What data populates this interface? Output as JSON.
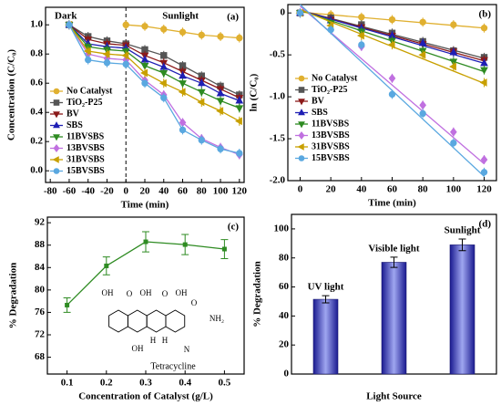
{
  "chart_data": [
    {
      "type": "line",
      "panel_label": "(a)",
      "x_label": "Time (min)",
      "y_label": "Concentration (C/C₀)",
      "annotations": [
        "Dark",
        "Sunlight"
      ],
      "divider": 0,
      "xlim": [
        -85,
        125
      ],
      "ylim": [
        -0.08,
        1.12
      ],
      "xticks": [
        -80,
        -60,
        -40,
        -20,
        0,
        20,
        40,
        60,
        80,
        100,
        120
      ],
      "yticks": [
        {
          "value": 0,
          "label": "0.0"
        },
        {
          "value": 0.2,
          "label": "0.2"
        },
        {
          "value": 0.4,
          "label": "0.4"
        },
        {
          "value": 0.6,
          "label": "0.6"
        },
        {
          "value": 0.8,
          "label": "0.8"
        },
        {
          "value": 1,
          "label": "1.0"
        }
      ],
      "x": [
        -60,
        -40,
        -20,
        0,
        20,
        40,
        60,
        80,
        100,
        120
      ],
      "series": [
        {
          "name": "No Catalyst",
          "color": "#e0b030",
          "marker": "circle",
          "values": [
            1.0,
            null,
            null,
            1.0,
            0.99,
            0.97,
            0.95,
            0.93,
            0.92,
            0.91
          ]
        },
        {
          "name": "TiO₂-P25",
          "color": "#555555",
          "marker": "square",
          "values": [
            1.0,
            0.92,
            0.89,
            0.87,
            0.83,
            0.79,
            0.72,
            0.65,
            0.58,
            0.52
          ]
        },
        {
          "name": "BV",
          "color": "#8b1a1a",
          "marker": "tri-down",
          "values": [
            1.0,
            0.9,
            0.87,
            0.86,
            0.79,
            0.74,
            0.68,
            0.62,
            0.56,
            0.5
          ]
        },
        {
          "name": "SBS",
          "color": "#1f1fb4",
          "marker": "tri-up",
          "values": [
            1.0,
            0.87,
            0.85,
            0.84,
            0.76,
            0.71,
            0.65,
            0.6,
            0.53,
            0.48
          ]
        },
        {
          "name": "11BVSBS",
          "color": "#2e8b22",
          "marker": "tri-down",
          "values": [
            1.0,
            0.85,
            0.83,
            0.82,
            0.72,
            0.67,
            0.6,
            0.54,
            0.48,
            0.43
          ]
        },
        {
          "name": "13BVSBS",
          "color": "#c070e0",
          "marker": "diamond",
          "values": [
            1.0,
            0.8,
            0.77,
            0.76,
            0.62,
            0.52,
            0.33,
            0.22,
            0.16,
            0.11
          ]
        },
        {
          "name": "31BVSBS",
          "color": "#c8a000",
          "marker": "tri-left",
          "values": [
            1.0,
            0.82,
            0.8,
            0.79,
            0.67,
            0.6,
            0.54,
            0.47,
            0.41,
            0.34
          ]
        },
        {
          "name": "15BVSBS",
          "color": "#5aa8e0",
          "marker": "circle",
          "values": [
            1.0,
            0.76,
            0.74,
            0.73,
            0.6,
            0.5,
            0.28,
            0.21,
            0.15,
            0.12
          ]
        }
      ]
    },
    {
      "type": "fit",
      "panel_label": "(b)",
      "x_label": "Time (min)",
      "y_label": "ln (C/C₀)",
      "xlim": [
        -8,
        128
      ],
      "ylim": [
        -2.0,
        0.1
      ],
      "xticks": [
        0,
        20,
        40,
        60,
        80,
        100,
        120
      ],
      "yticks": [
        0,
        -0.5,
        {
          "value": -1,
          "label": "-1.0"
        },
        -1.5,
        {
          "value": -2,
          "label": "-2.0"
        }
      ],
      "x": [
        0,
        20,
        40,
        60,
        80,
        100,
        120
      ],
      "fit_x": [
        0,
        120
      ],
      "series": [
        {
          "name": "No Catalyst",
          "color": "#e0b030",
          "marker": "circle",
          "values": [
            0,
            -0.02,
            -0.05,
            -0.08,
            -0.11,
            -0.14,
            -0.18
          ],
          "fit": [
            0.01,
            -0.18
          ]
        },
        {
          "name": "TiO₂-P25",
          "color": "#555555",
          "marker": "square",
          "values": [
            0,
            -0.06,
            -0.14,
            -0.24,
            -0.34,
            -0.45,
            -0.53
          ],
          "fit": [
            0.03,
            -0.54
          ]
        },
        {
          "name": "BV",
          "color": "#8b1a1a",
          "marker": "tri-down",
          "values": [
            0,
            -0.08,
            -0.17,
            -0.27,
            -0.37,
            -0.46,
            -0.56
          ],
          "fit": [
            0.03,
            -0.57
          ]
        },
        {
          "name": "SBS",
          "color": "#1f1fb4",
          "marker": "tri-up",
          "values": [
            0,
            -0.09,
            -0.18,
            -0.27,
            -0.36,
            -0.47,
            -0.6
          ],
          "fit": [
            0.03,
            -0.6
          ]
        },
        {
          "name": "11BVSBS",
          "color": "#2e8b22",
          "marker": "tri-down",
          "values": [
            0,
            -0.12,
            -0.22,
            -0.33,
            -0.45,
            -0.58,
            -0.68
          ],
          "fit": [
            0.03,
            -0.7
          ]
        },
        {
          "name": "13BVSBS",
          "color": "#c070e0",
          "marker": "diamond",
          "values": [
            0,
            -0.2,
            -0.4,
            -0.78,
            -1.1,
            -1.42,
            -1.75
          ],
          "fit": [
            0.08,
            -1.8
          ]
        },
        {
          "name": "31BVSBS",
          "color": "#c8a000",
          "marker": "tri-left",
          "values": [
            0,
            -0.15,
            -0.27,
            -0.38,
            -0.5,
            -0.64,
            -0.83
          ],
          "fit": [
            0.04,
            -0.84
          ]
        },
        {
          "name": "15BVSBS",
          "color": "#5aa8e0",
          "marker": "circle",
          "values": [
            0,
            -0.2,
            -0.38,
            -0.97,
            -1.2,
            -1.55,
            -1.9
          ],
          "fit": [
            0.1,
            -1.95
          ]
        }
      ]
    },
    {
      "type": "errline",
      "panel_label": "(c)",
      "x_label": "Concentration of Catalyst (g/L)",
      "y_label": "% Degradation",
      "xlim": [
        0.05,
        0.55
      ],
      "ylim": [
        65,
        93
      ],
      "xticks": [
        0.1,
        0.2,
        0.3,
        0.4,
        0.5
      ],
      "yticks": [
        68,
        72,
        76,
        80,
        84,
        88,
        92
      ],
      "x": [
        0.1,
        0.2,
        0.3,
        0.4,
        0.5
      ],
      "values": [
        77.3,
        84.3,
        88.6,
        88.1,
        87.3
      ],
      "errors": [
        1.3,
        1.6,
        1.8,
        1.8,
        1.7
      ],
      "color": "#2e8b22",
      "molecule": {
        "name": "Tetracycline",
        "atoms": [
          "OH",
          "O",
          "OH",
          "O",
          "OH",
          "O",
          "NH₂",
          "OH",
          "H",
          "H",
          "N"
        ]
      }
    },
    {
      "type": "bar",
      "panel_label": "(d)",
      "x_label": "Light Source",
      "y_label": "% Degradation",
      "ylim": [
        0,
        110
      ],
      "yticks": [
        0,
        20,
        40,
        60,
        80,
        100
      ],
      "categories": [
        "UV light",
        "Visible light",
        "Sunlight"
      ],
      "values": [
        51.5,
        77,
        89
      ],
      "errors": [
        2.5,
        3.5,
        4
      ],
      "color": "#3030c0"
    }
  ]
}
